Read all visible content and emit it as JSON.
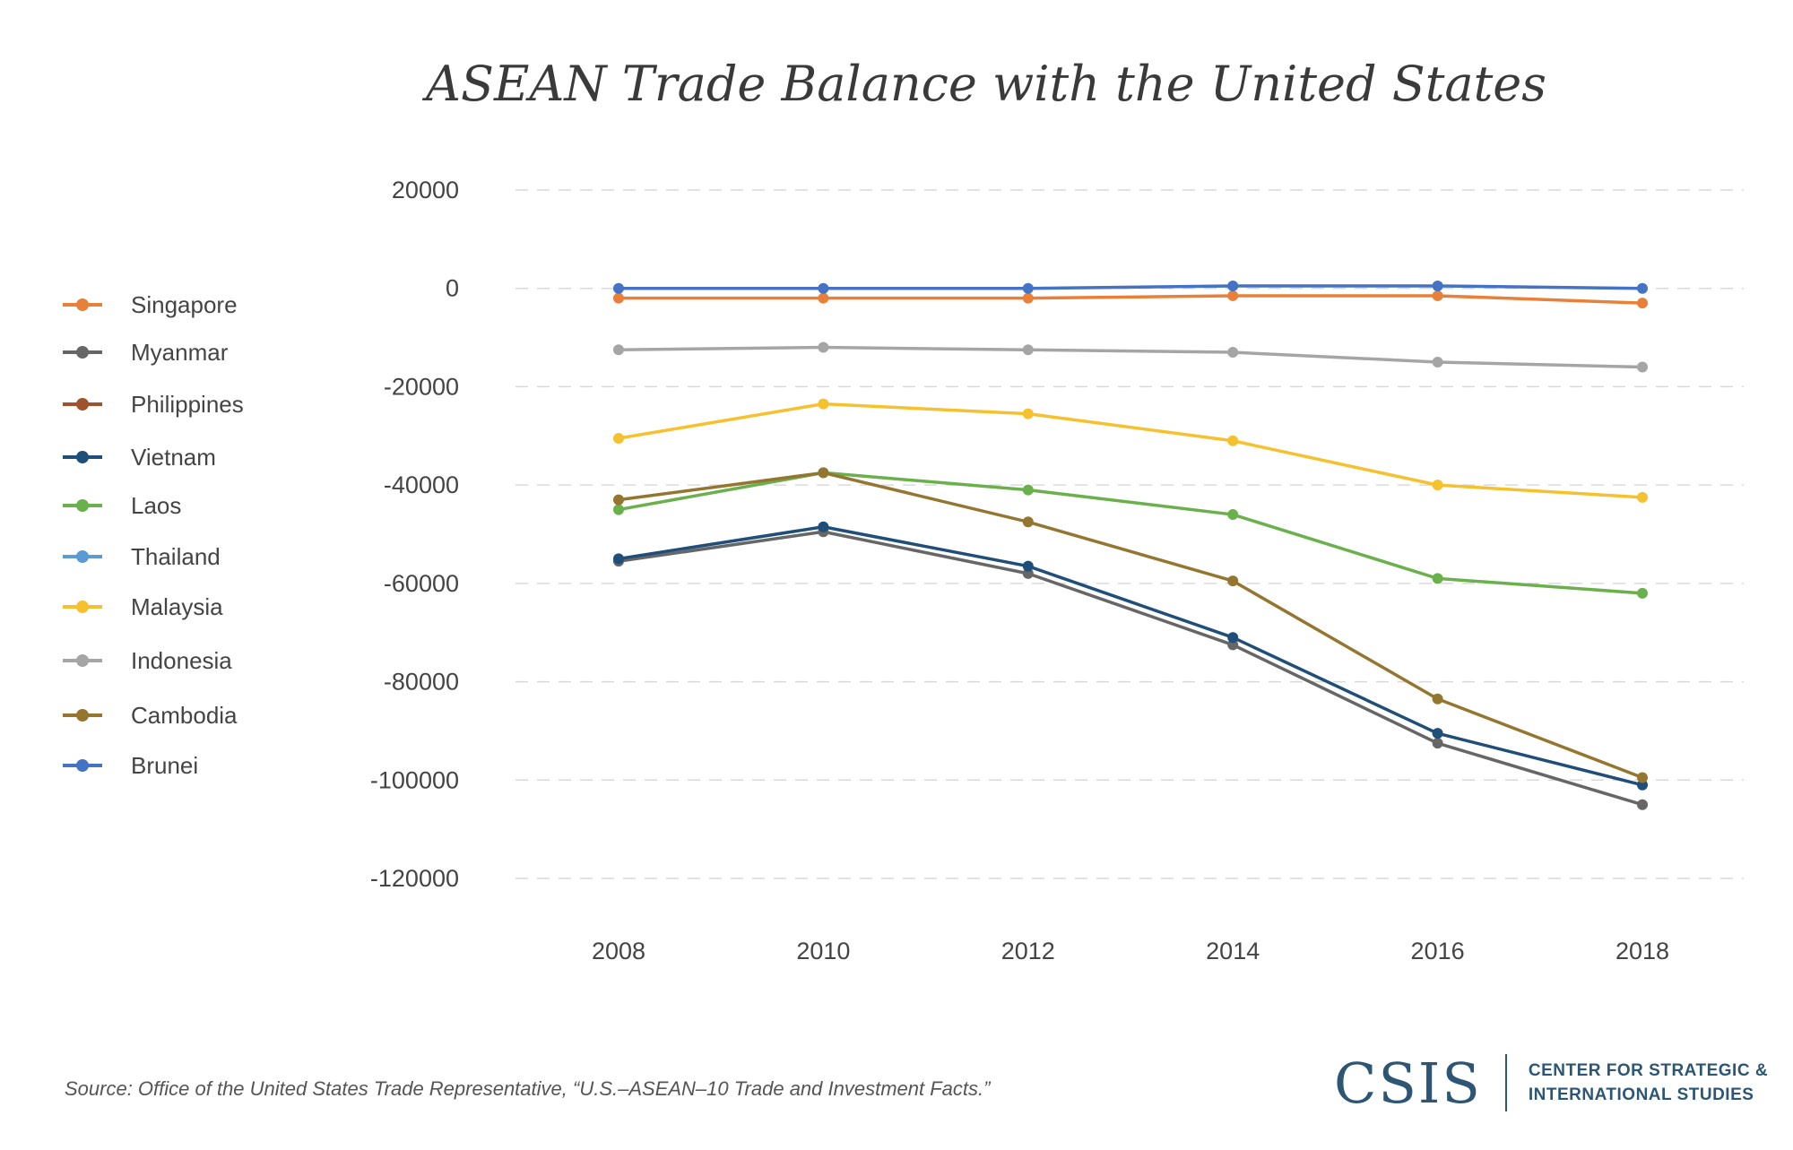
{
  "chart_data": {
    "type": "line",
    "title": "ASEAN Trade Balance with the United States",
    "xlabel": "",
    "ylabel": "",
    "x": [
      2008,
      2010,
      2012,
      2014,
      2016,
      2018
    ],
    "ylim": [
      -120000,
      20000
    ],
    "yticks": [
      20000,
      0,
      -20000,
      -40000,
      -60000,
      -80000,
      -100000,
      -120000
    ],
    "grid": "horizontal dashed",
    "legend_position": "left",
    "series": [
      {
        "name": "Singapore",
        "color": "#E8803A",
        "values": [
          -2000,
          -2000,
          -2000,
          -1500,
          -1500,
          -3000
        ]
      },
      {
        "name": "Myanmar",
        "color": "#666666",
        "values": [
          -55500,
          -49500,
          -58000,
          -72500,
          -92500,
          -105000
        ]
      },
      {
        "name": "Philippines",
        "color": "#A0522D",
        "values": [
          null,
          null,
          null,
          null,
          null,
          null
        ]
      },
      {
        "name": "Vietnam",
        "color": "#1F4E79",
        "values": [
          -55000,
          -48500,
          -56500,
          -71000,
          -90500,
          -101000
        ]
      },
      {
        "name": "Laos",
        "color": "#6AB04C",
        "values": [
          -45000,
          -37500,
          -41000,
          -46000,
          -59000,
          -62000
        ]
      },
      {
        "name": "Thailand",
        "color": "#5B9BD5",
        "values": [
          null,
          null,
          null,
          null,
          null,
          null
        ]
      },
      {
        "name": "Malaysia",
        "color": "#F5C12E",
        "values": [
          -30500,
          -23500,
          -25500,
          -31000,
          -40000,
          -42500
        ]
      },
      {
        "name": "Indonesia",
        "color": "#A5A5A5",
        "values": [
          -12500,
          -12000,
          -12500,
          -13000,
          -15000,
          -16000
        ]
      },
      {
        "name": "Cambodia",
        "color": "#957630",
        "values": [
          -43000,
          -37500,
          -47500,
          -59500,
          -83500,
          -99500
        ]
      },
      {
        "name": "Brunei",
        "color": "#4472C4",
        "values": [
          0,
          0,
          0,
          500,
          500,
          0
        ]
      }
    ]
  },
  "source": "Source: Office of the United States Trade Representative, “U.S.–ASEAN–10 Trade and Investment Facts.”",
  "logo": {
    "mark": "CSIS",
    "line1": "CENTER FOR STRATEGIC &",
    "line2": "INTERNATIONAL STUDIES"
  }
}
